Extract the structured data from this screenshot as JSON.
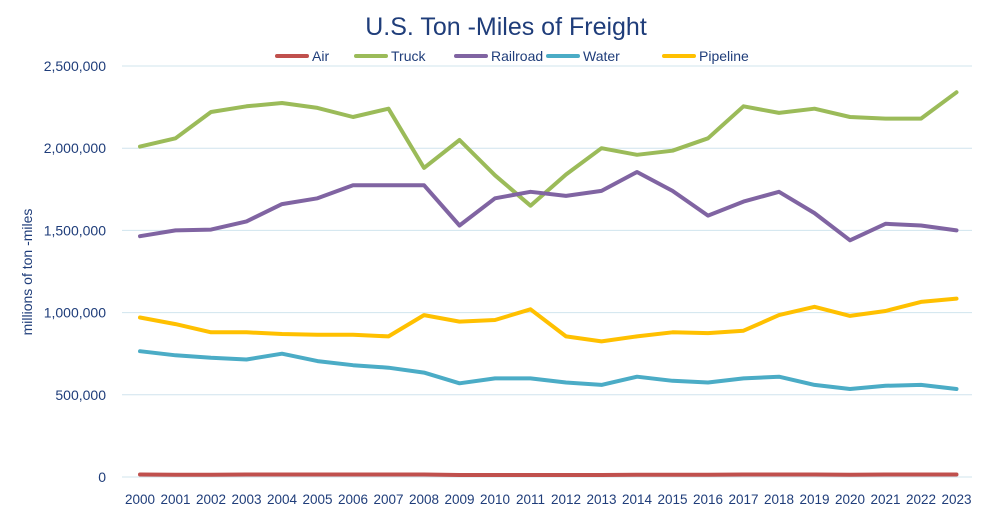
{
  "chart_data": {
    "type": "line",
    "title": "U.S. Ton -Miles of Freight",
    "xlabel": "",
    "ylabel": "millions of ton -miles",
    "ylim": [
      0,
      2500000
    ],
    "yticks": [
      0,
      500000,
      1000000,
      1500000,
      2000000,
      2500000
    ],
    "ytick_labels": [
      "0",
      "500,000",
      "1,000,000",
      "1,500,000",
      "2,000,000",
      "2,500,000"
    ],
    "grid": true,
    "legend_position": "top",
    "categories": [
      "2000",
      "2001",
      "2002",
      "2003",
      "2004",
      "2005",
      "2006",
      "2007",
      "2008",
      "2009",
      "2010",
      "2011",
      "2012",
      "2013",
      "2014",
      "2015",
      "2016",
      "2017",
      "2018",
      "2019",
      "2020",
      "2021",
      "2022",
      "2023"
    ],
    "series": [
      {
        "name": "Air",
        "color": "#c0504d",
        "values": [
          15000,
          14000,
          14000,
          15000,
          15000,
          15000,
          15000,
          15000,
          15000,
          12000,
          12000,
          12000,
          12000,
          12000,
          14000,
          14000,
          14000,
          15000,
          15000,
          15000,
          14000,
          15000,
          15000,
          15000
        ]
      },
      {
        "name": "Truck",
        "color": "#9bbb59",
        "values": [
          2010000,
          2060000,
          2220000,
          2255000,
          2275000,
          2245000,
          2190000,
          2240000,
          1880000,
          2050000,
          1835000,
          1650000,
          1840000,
          2000000,
          1960000,
          1985000,
          2060000,
          2255000,
          2215000,
          2240000,
          2190000,
          2180000,
          2180000,
          2340000
        ]
      },
      {
        "name": "Railroad",
        "color": "#8064a2",
        "values": [
          1465000,
          1500000,
          1505000,
          1555000,
          1660000,
          1695000,
          1775000,
          1775000,
          1775000,
          1530000,
          1695000,
          1735000,
          1710000,
          1740000,
          1855000,
          1740000,
          1590000,
          1675000,
          1735000,
          1605000,
          1440000,
          1540000,
          1530000,
          1500000
        ]
      },
      {
        "name": "Water",
        "color": "#4bacc6",
        "values": [
          765000,
          740000,
          725000,
          715000,
          750000,
          705000,
          680000,
          665000,
          635000,
          570000,
          600000,
          600000,
          575000,
          560000,
          610000,
          585000,
          575000,
          600000,
          610000,
          560000,
          535000,
          555000,
          560000,
          535000
        ]
      },
      {
        "name": "Pipeline",
        "color": "#ffc000",
        "values": [
          970000,
          930000,
          880000,
          880000,
          870000,
          865000,
          865000,
          855000,
          985000,
          945000,
          955000,
          1020000,
          855000,
          825000,
          855000,
          880000,
          875000,
          890000,
          985000,
          1035000,
          980000,
          1010000,
          1065000,
          1085000
        ]
      }
    ]
  }
}
